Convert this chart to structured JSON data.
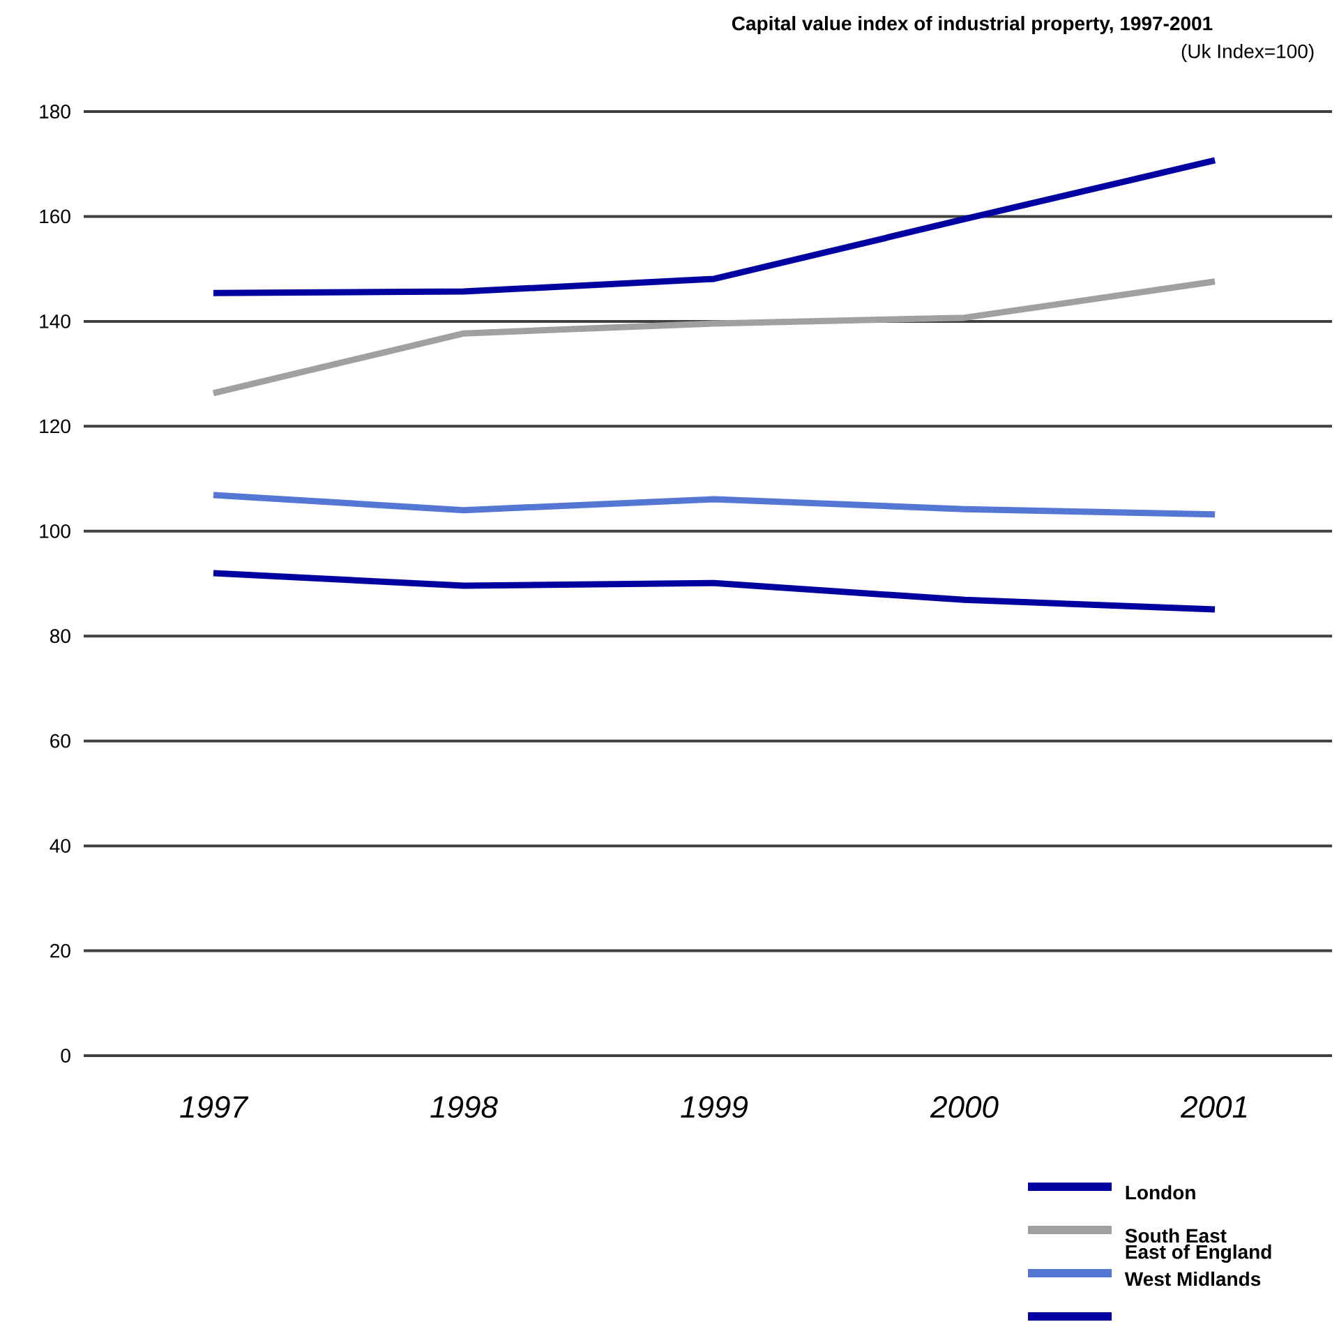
{
  "chart_data": {
    "type": "line",
    "title": "Capital value index of industrial property, 1997-2001",
    "subtitle": "(Uk Index=100)",
    "categories": [
      "1997",
      "1998",
      "1999",
      "2000",
      "2001"
    ],
    "series": [
      {
        "name": "London",
        "color": "#0000a0",
        "values": [
          145.4,
          145.7,
          148.1,
          159.5,
          170.7
        ]
      },
      {
        "name": "South East",
        "color": "#a0a0a0",
        "values": [
          126.3,
          137.7,
          139.6,
          140.7,
          147.6
        ]
      },
      {
        "name": "West Midlands",
        "color": "#5577d4",
        "values": [
          106.9,
          104.0,
          106.1,
          104.2,
          103.2
        ]
      },
      {
        "color": "#0000a0",
        "values": [
          92.0,
          89.6,
          90.1,
          86.9,
          85.1
        ]
      }
    ],
    "annotations": [
      "East of England"
    ],
    "ylim": [
      0,
      180
    ],
    "yticks": [
      0,
      20,
      40,
      60,
      80,
      100,
      120,
      140,
      160,
      180
    ],
    "grid": "y",
    "legend": "bottom right"
  }
}
